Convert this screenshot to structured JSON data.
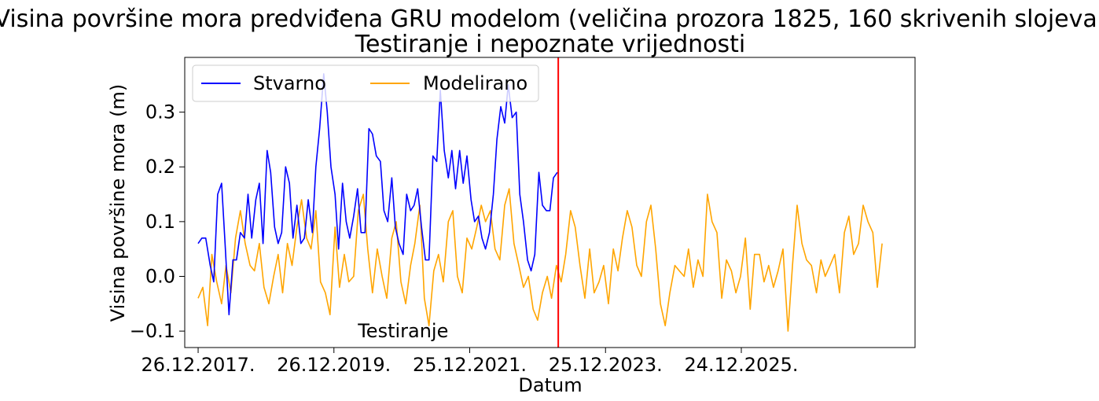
{
  "chart_data": {
    "type": "line",
    "title": "Visina površine mora predviđena GRU modelom (veličina prozora 1825, 160 skrivenih slojeva)",
    "subtitle": "Testiranje i nepoznate vrijednosti",
    "xlabel": "Datum",
    "ylabel": "Visina površine mora (m)",
    "x_ticks": [
      "26.12.2017.",
      "26.12.2019.",
      "25.12.2021.",
      "25.12.2023.",
      "24.12.2025."
    ],
    "y_ticks": [
      "−0.1",
      "0.0",
      "0.1",
      "0.2",
      "0.3"
    ],
    "ylim": [
      -0.13,
      0.4
    ],
    "xlim": [
      "2017-10-15",
      "2028-07-15"
    ],
    "grid": false,
    "legend_position": "top-left",
    "divider": {
      "x": "2023-04-15",
      "color": "#ff0000"
    },
    "annotation": {
      "text": "Testiranje",
      "x": "2021-01-01",
      "y": -0.1
    },
    "series": [
      {
        "name": "Stvarno",
        "color": "#0000ff",
        "x": [
          "2017-12-26",
          "2018-01-15",
          "2018-02-05",
          "2018-03-01",
          "2018-03-20",
          "2018-04-10",
          "2018-05-01",
          "2018-05-20",
          "2018-06-10",
          "2018-07-01",
          "2018-07-20",
          "2018-08-10",
          "2018-09-01",
          "2018-09-20",
          "2018-10-10",
          "2018-11-01",
          "2018-11-20",
          "2018-12-10",
          "2019-01-01",
          "2019-01-20",
          "2019-02-10",
          "2019-03-01",
          "2019-03-20",
          "2019-04-10",
          "2019-05-01",
          "2019-05-20",
          "2019-06-10",
          "2019-07-01",
          "2019-07-20",
          "2019-08-10",
          "2019-09-01",
          "2019-09-20",
          "2019-10-10",
          "2019-11-01",
          "2019-11-20",
          "2019-12-10",
          "2020-01-01",
          "2020-01-20",
          "2020-02-10",
          "2020-03-01",
          "2020-03-20",
          "2020-04-10",
          "2020-05-01",
          "2020-05-20",
          "2020-06-10",
          "2020-07-01",
          "2020-07-20",
          "2020-08-10",
          "2020-09-01",
          "2020-09-20",
          "2020-10-10",
          "2020-11-01",
          "2020-11-20",
          "2020-12-10",
          "2021-01-01",
          "2021-01-20",
          "2021-02-10",
          "2021-03-01",
          "2021-03-20",
          "2021-04-10",
          "2021-05-01",
          "2021-05-20",
          "2021-06-10",
          "2021-07-01",
          "2021-07-20",
          "2021-08-10",
          "2021-09-01",
          "2021-09-20",
          "2021-10-10",
          "2021-11-01",
          "2021-11-20",
          "2021-12-10",
          "2022-01-01",
          "2022-01-20",
          "2022-02-10",
          "2022-03-01",
          "2022-03-20",
          "2022-04-10",
          "2022-05-01",
          "2022-05-20",
          "2022-06-10",
          "2022-07-01",
          "2022-07-20",
          "2022-08-10",
          "2022-09-01",
          "2022-09-20",
          "2022-10-10",
          "2022-11-01",
          "2022-11-20",
          "2022-12-10",
          "2023-01-01",
          "2023-01-20",
          "2023-02-10",
          "2023-03-01",
          "2023-03-20",
          "2023-04-10"
        ],
        "y": [
          0.06,
          0.07,
          0.07,
          0.02,
          -0.01,
          0.15,
          0.17,
          0.06,
          -0.07,
          0.03,
          0.03,
          0.08,
          0.07,
          0.15,
          0.07,
          0.14,
          0.17,
          0.06,
          0.23,
          0.19,
          0.09,
          0.06,
          0.08,
          0.2,
          0.17,
          0.07,
          0.13,
          0.06,
          0.07,
          0.14,
          0.08,
          0.2,
          0.27,
          0.37,
          0.3,
          0.2,
          0.15,
          0.05,
          0.17,
          0.1,
          0.07,
          0.11,
          0.16,
          0.08,
          0.08,
          0.27,
          0.26,
          0.22,
          0.21,
          0.12,
          0.1,
          0.18,
          0.09,
          0.06,
          0.04,
          0.15,
          0.12,
          0.13,
          0.16,
          0.09,
          0.03,
          0.03,
          0.22,
          0.21,
          0.34,
          0.23,
          0.18,
          0.23,
          0.16,
          0.23,
          0.17,
          0.22,
          0.14,
          0.1,
          0.11,
          0.07,
          0.05,
          0.08,
          0.15,
          0.25,
          0.31,
          0.28,
          0.35,
          0.29,
          0.3,
          0.15,
          0.1,
          0.03,
          0.01,
          0.04,
          0.19,
          0.13,
          0.12,
          0.12,
          0.18,
          0.19
        ]
      },
      {
        "name": "Modelirano",
        "color": "#ffa500",
        "x": [
          "2017-12-26",
          "2018-01-20",
          "2018-02-15",
          "2018-03-10",
          "2018-04-05",
          "2018-05-01",
          "2018-05-25",
          "2018-06-20",
          "2018-07-15",
          "2018-08-10",
          "2018-09-05",
          "2018-10-01",
          "2018-10-25",
          "2018-11-20",
          "2018-12-15",
          "2019-01-10",
          "2019-02-05",
          "2019-03-01",
          "2019-03-25",
          "2019-04-20",
          "2019-05-15",
          "2019-06-10",
          "2019-07-05",
          "2019-08-01",
          "2019-08-25",
          "2019-09-20",
          "2019-10-15",
          "2019-11-10",
          "2019-12-05",
          "2020-01-01",
          "2020-01-25",
          "2020-02-20",
          "2020-03-15",
          "2020-04-10",
          "2020-05-05",
          "2020-06-01",
          "2020-06-25",
          "2020-07-20",
          "2020-08-15",
          "2020-09-10",
          "2020-10-05",
          "2020-11-01",
          "2020-11-25",
          "2020-12-20",
          "2021-01-15",
          "2021-02-10",
          "2021-03-05",
          "2021-04-01",
          "2021-04-25",
          "2021-05-20",
          "2021-06-15",
          "2021-07-10",
          "2021-08-05",
          "2021-09-01",
          "2021-09-25",
          "2021-10-20",
          "2021-11-15",
          "2021-12-10",
          "2022-01-05",
          "2022-02-01",
          "2022-02-25",
          "2022-03-20",
          "2022-04-15",
          "2022-05-10",
          "2022-06-05",
          "2022-07-01",
          "2022-07-25",
          "2022-08-20",
          "2022-09-15",
          "2022-10-10",
          "2022-11-05",
          "2022-12-01",
          "2022-12-25",
          "2023-01-20",
          "2023-02-15",
          "2023-03-10",
          "2023-04-05",
          "2023-05-01",
          "2023-05-25",
          "2023-06-20",
          "2023-07-15",
          "2023-08-10",
          "2023-09-05",
          "2023-10-01",
          "2023-10-25",
          "2023-11-20",
          "2023-12-15",
          "2024-01-10",
          "2024-02-05",
          "2024-03-01",
          "2024-03-25",
          "2024-04-20",
          "2024-05-15",
          "2024-06-10",
          "2024-07-05",
          "2024-08-01",
          "2024-08-25",
          "2024-09-20",
          "2024-10-15",
          "2024-11-10",
          "2024-12-05",
          "2025-01-01",
          "2025-01-25",
          "2025-02-20",
          "2025-03-15",
          "2025-04-10",
          "2025-05-05",
          "2025-06-01",
          "2025-06-25",
          "2025-07-20",
          "2025-08-15",
          "2025-09-10",
          "2025-10-05",
          "2025-11-01",
          "2025-11-25",
          "2025-12-20",
          "2026-01-15",
          "2026-02-10",
          "2026-03-05",
          "2026-04-01",
          "2026-04-25",
          "2026-05-20",
          "2026-06-15",
          "2026-07-10",
          "2026-08-05",
          "2026-09-01",
          "2026-09-25",
          "2026-10-20",
          "2026-11-15",
          "2026-12-10",
          "2027-01-05",
          "2027-02-01",
          "2027-02-25",
          "2027-03-20",
          "2027-04-15",
          "2027-05-10",
          "2027-06-05",
          "2027-07-01",
          "2027-07-25",
          "2027-08-20",
          "2027-09-15",
          "2027-10-10",
          "2027-11-05",
          "2027-12-01",
          "2027-12-25",
          "2028-01-20"
        ],
        "y": [
          -0.04,
          -0.02,
          -0.09,
          0.04,
          -0.01,
          -0.05,
          0.02,
          -0.03,
          0.07,
          0.12,
          0.06,
          0.02,
          0.01,
          0.06,
          -0.02,
          -0.05,
          0.0,
          0.04,
          -0.03,
          0.06,
          0.02,
          0.09,
          0.14,
          0.07,
          0.05,
          0.12,
          -0.01,
          -0.03,
          -0.07,
          0.09,
          -0.02,
          0.04,
          -0.01,
          0.0,
          0.12,
          0.15,
          0.05,
          -0.03,
          0.05,
          0.0,
          -0.04,
          0.07,
          0.1,
          -0.01,
          -0.05,
          0.02,
          0.06,
          0.13,
          -0.04,
          -0.09,
          0.01,
          0.04,
          -0.01,
          0.1,
          0.12,
          0.0,
          -0.03,
          0.07,
          0.05,
          0.09,
          0.13,
          0.1,
          0.12,
          0.05,
          0.03,
          0.13,
          0.16,
          0.06,
          0.02,
          -0.02,
          0.0,
          -0.06,
          -0.08,
          -0.03,
          0.0,
          -0.04,
          0.02,
          -0.01,
          0.04,
          0.12,
          0.09,
          0.02,
          -0.04,
          0.05,
          -0.03,
          -0.01,
          0.02,
          -0.05,
          0.05,
          0.01,
          0.07,
          0.12,
          0.09,
          0.02,
          0.0,
          0.1,
          0.13,
          0.05,
          -0.05,
          -0.09,
          -0.03,
          0.02,
          0.01,
          0.0,
          0.05,
          -0.02,
          0.03,
          0.0,
          0.15,
          0.1,
          0.08,
          -0.04,
          0.03,
          0.01,
          -0.03,
          0.0,
          0.07,
          -0.06,
          0.04,
          0.04,
          -0.01,
          0.02,
          -0.02,
          0.01,
          0.05,
          -0.1,
          0.02,
          0.13,
          0.06,
          0.03,
          0.02,
          -0.03,
          0.03,
          0.0,
          0.02,
          0.04,
          -0.03,
          0.08,
          0.11,
          0.04,
          0.06,
          0.13,
          0.1,
          0.08,
          -0.02,
          0.06
        ]
      }
    ]
  }
}
